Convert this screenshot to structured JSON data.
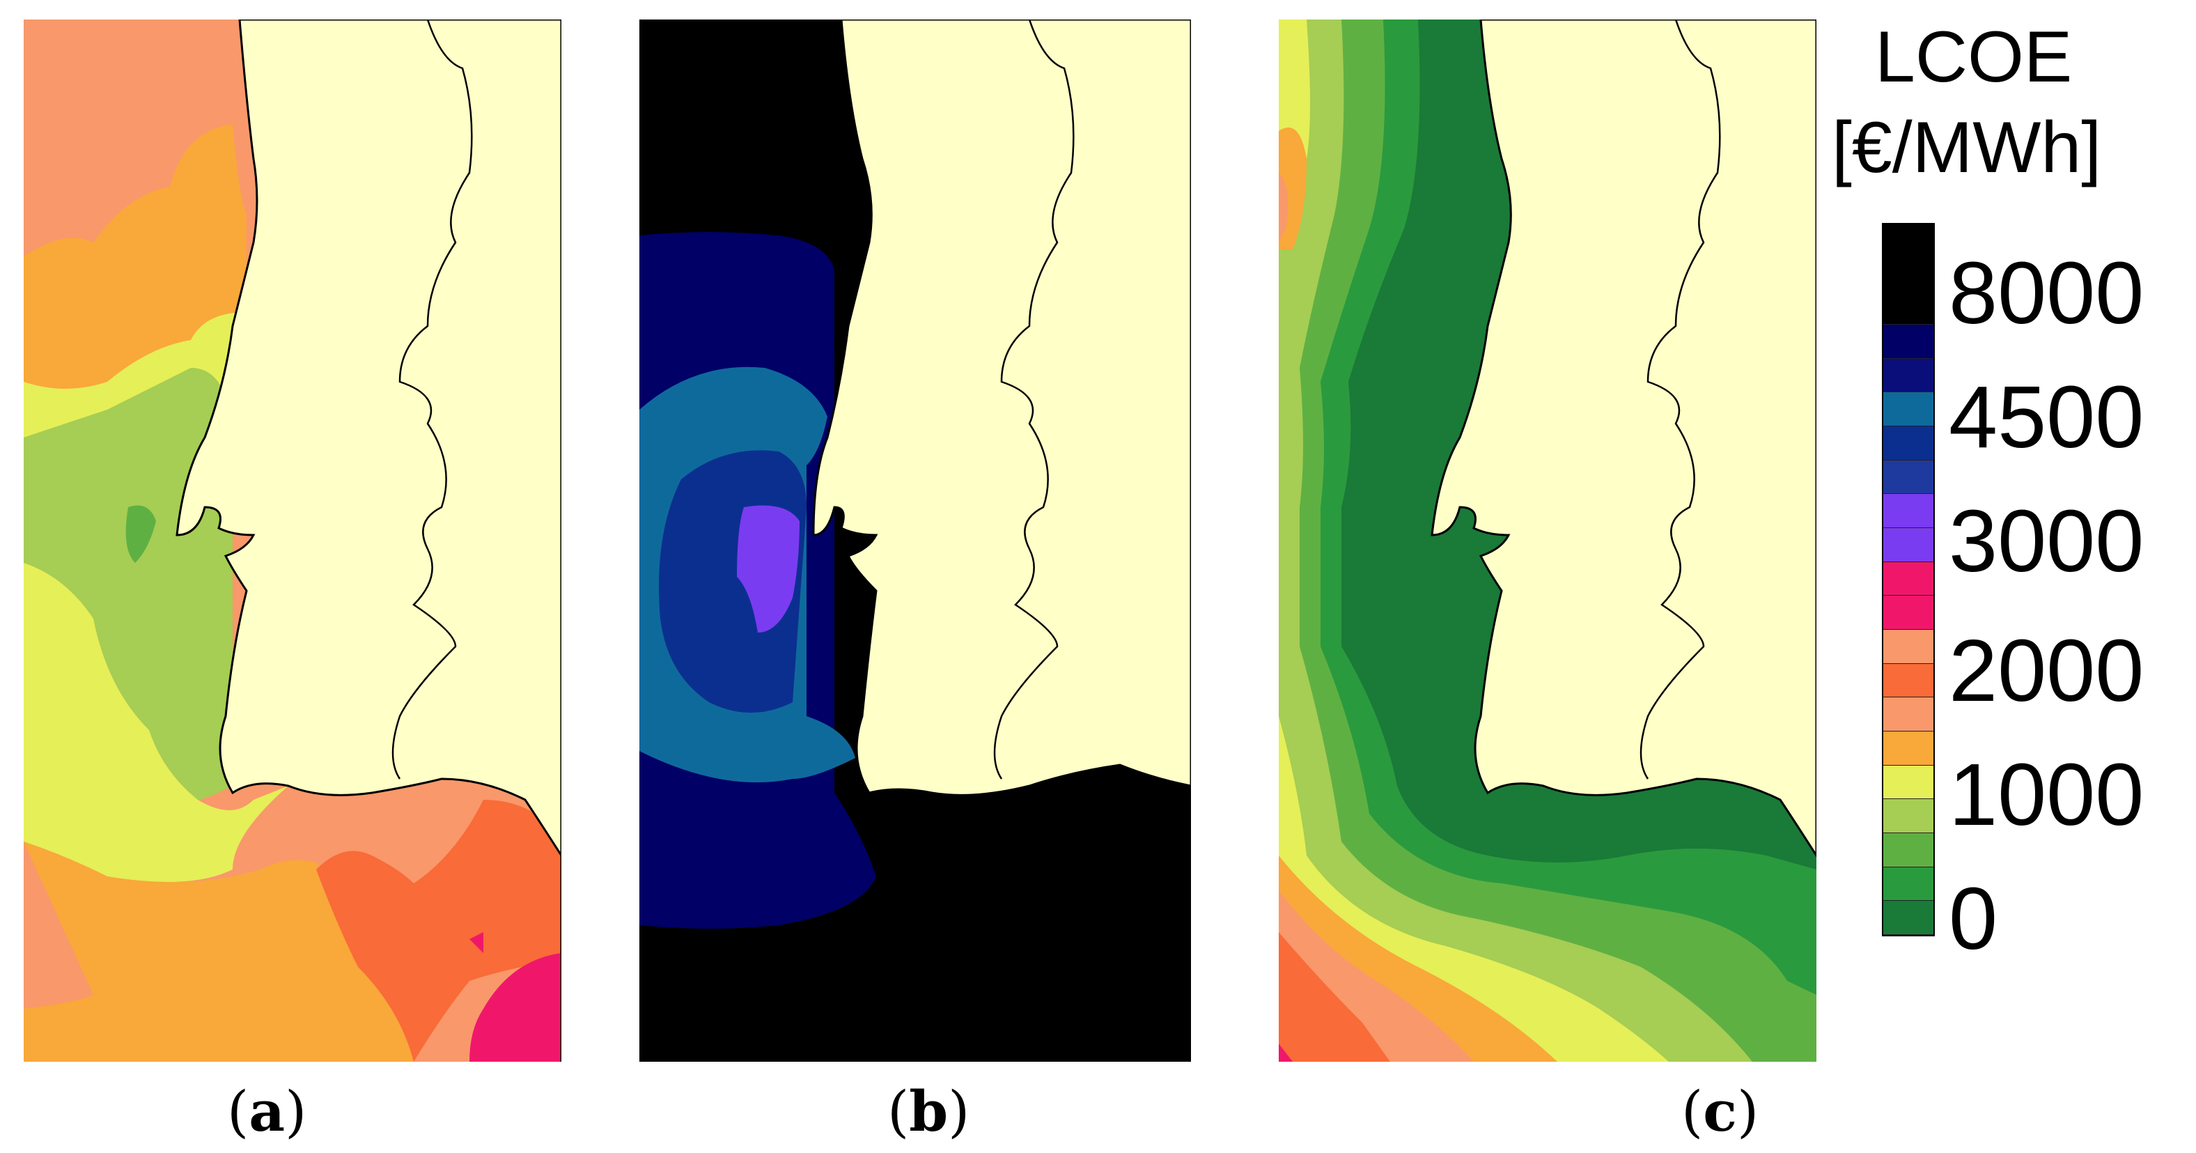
{
  "legend": {
    "title_line1": "LCOE",
    "title_line2": "[€/MWh]",
    "ticks": [
      "8000",
      "4500",
      "3000",
      "2000",
      "1000",
      "0"
    ],
    "colors": [
      "#000000",
      "#000066",
      "#0a0e7a",
      "#0f6a9c",
      "#0b2f8f",
      "#1f3a9e",
      "#7a3cf0",
      "#7a3cf0",
      "#f0176a",
      "#f0176a",
      "#f9986b",
      "#f96b38",
      "#f9986b",
      "#f9a83a",
      "#e5ef58",
      "#a6cd54",
      "#5fb043",
      "#2a9a3e",
      "#1a7a38"
    ]
  },
  "panels": [
    {
      "label": "(a)",
      "sea_colors": [
        "#f9986b",
        "#f9a83a",
        "#e5ef58",
        "#a6cd54",
        "#5fb043",
        "#f96b38",
        "#f0176a"
      ]
    },
    {
      "label": "(b)",
      "sea_colors": [
        "#000000",
        "#000066",
        "#0f6a9c",
        "#0b2f8f",
        "#7a3cf0"
      ]
    },
    {
      "label": "(c)",
      "sea_colors": [
        "#e5ef58",
        "#a6cd54",
        "#5fb043",
        "#2a9a3e",
        "#1a7a38",
        "#f9a83a",
        "#f9986b",
        "#f96b38",
        "#f0176a"
      ]
    }
  ],
  "land_color": "#ffffc8",
  "border_color": "#000000"
}
